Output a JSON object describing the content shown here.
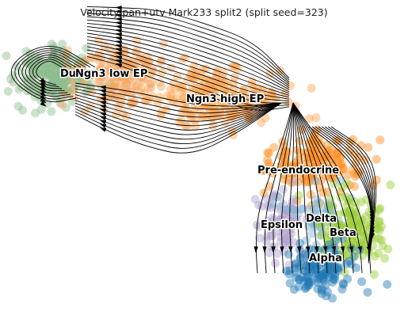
{
  "chart_data": {
    "type": "scatter",
    "subtype": "rna-velocity-embedding-stream",
    "title": "Velocity pan+utv Mark233 split2 (split seed=323)",
    "xlabel": "",
    "ylabel": "",
    "axes_visible": false,
    "grid": false,
    "colors": {
      "ductal": "#8fbc8f",
      "ngn3_low_ep": "#f4a460",
      "ngn3_high_ep": "#ffa54f",
      "pre_endocrine": "#ff8c1a",
      "alpha": "#1f77b4",
      "beta": "#9acd32",
      "delta": "#7fb3d5",
      "epsilon": "#b0a0cc",
      "stream": "#000000"
    },
    "clusters": [
      {
        "name": "Ductal",
        "label": "Du",
        "color_key": "ductal"
      },
      {
        "name": "Ngn3 low EP",
        "label": "Ngn3 low EP",
        "color_key": "ngn3_low_ep"
      },
      {
        "name": "Ngn3 high EP",
        "label": "Ngn3 high EP",
        "color_key": "ngn3_high_ep"
      },
      {
        "name": "Pre-endocrine",
        "label": "Pre-endocrine",
        "color_key": "pre_endocrine"
      },
      {
        "name": "Delta",
        "label": "Delta",
        "color_key": "delta"
      },
      {
        "name": "Epsilon",
        "label": "Epsilon",
        "color_key": "epsilon"
      },
      {
        "name": "Beta",
        "label": "Beta",
        "color_key": "beta"
      },
      {
        "name": "Alpha",
        "label": "Alpha",
        "color_key": "alpha"
      }
    ]
  }
}
